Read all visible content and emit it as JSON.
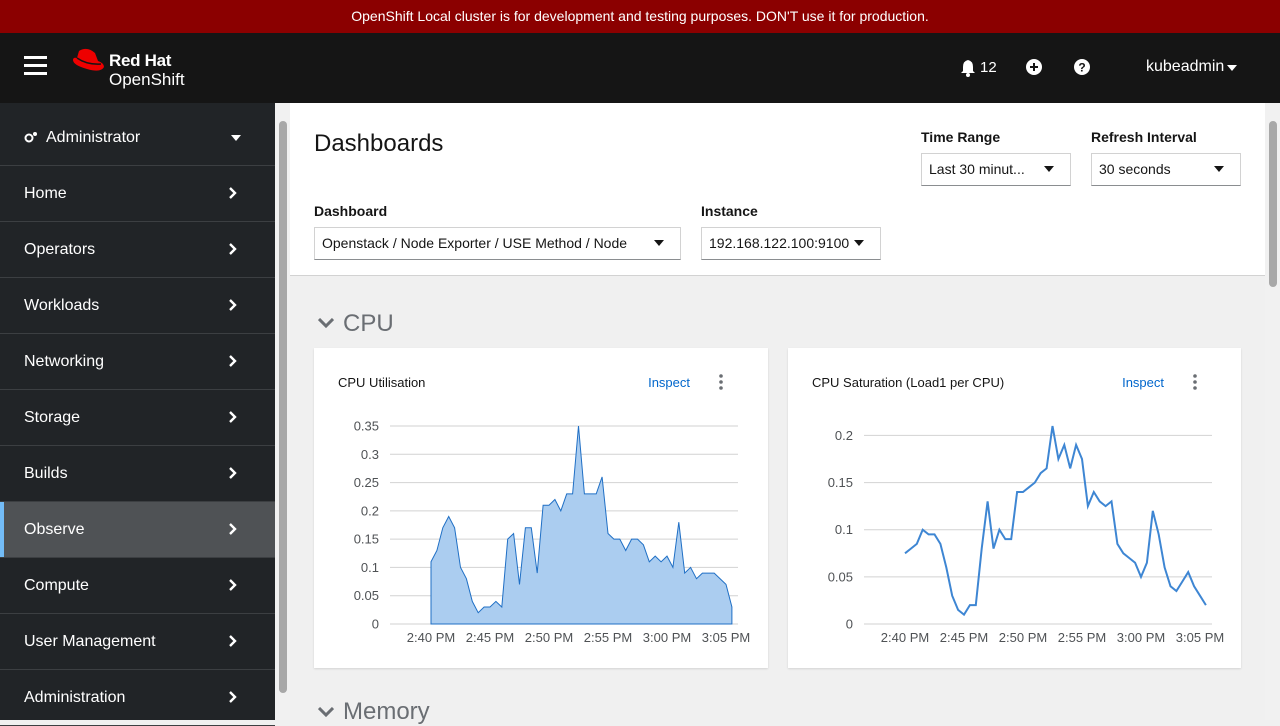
{
  "banner": "OpenShift Local cluster is for development and testing purposes. DON'T use it for production.",
  "header": {
    "brand_top": "Red Hat",
    "brand_bottom": "OpenShift",
    "notifications": 12,
    "user": "kubeadmin"
  },
  "nav": {
    "perspective": "Administrator",
    "items": [
      "Home",
      "Operators",
      "Workloads",
      "Networking",
      "Storage",
      "Builds",
      "Observe",
      "Compute",
      "User Management",
      "Administration"
    ],
    "active_item": 6
  },
  "page": {
    "title": "Dashboards",
    "time_range_label": "Time Range",
    "time_range": "Last 30 minut...",
    "refresh_label": "Refresh Interval",
    "refresh": "30 seconds",
    "dashboard_label": "Dashboard",
    "dashboard": "Openstack / Node Exporter / USE Method / Node",
    "instance_label": "Instance",
    "instance": "192.168.122.100:9100",
    "sections": [
      "CPU",
      "Memory"
    ]
  },
  "chart_data": [
    {
      "type": "area",
      "title": "CPU Utilisation",
      "action": "Inspect",
      "color": "#1f6fc5",
      "fill": "#abcdf0",
      "categories": [
        "2:40 PM",
        null,
        null,
        null,
        null,
        null,
        null,
        null,
        null,
        null,
        "2:45 PM",
        null,
        null,
        null,
        null,
        null,
        null,
        null,
        null,
        null,
        "2:50 PM",
        null,
        null,
        null,
        null,
        null,
        null,
        null,
        null,
        null,
        "2:55 PM",
        null,
        null,
        null,
        null,
        null,
        null,
        null,
        null,
        null,
        "3:00 PM",
        null,
        null,
        null,
        null,
        null,
        null,
        null,
        null,
        null,
        "3:05 PM",
        null
      ],
      "values": [
        0.11,
        0.13,
        0.17,
        0.19,
        0.17,
        0.1,
        0.08,
        0.04,
        0.02,
        0.03,
        0.03,
        0.04,
        0.03,
        0.15,
        0.16,
        0.07,
        0.17,
        0.17,
        0.09,
        0.21,
        0.21,
        0.22,
        0.2,
        0.23,
        0.23,
        0.35,
        0.23,
        0.23,
        0.23,
        0.26,
        0.16,
        0.15,
        0.15,
        0.13,
        0.15,
        0.15,
        0.14,
        0.11,
        0.12,
        0.11,
        0.12,
        0.1,
        0.18,
        0.09,
        0.1,
        0.08,
        0.09,
        0.09,
        0.09,
        0.08,
        0.07,
        0.03
      ],
      "ylim": [
        0,
        0.35
      ],
      "yticks": [
        0,
        0.05,
        0.1,
        0.15,
        0.2,
        0.25,
        0.3,
        0.35
      ],
      "grid": true
    },
    {
      "type": "line",
      "title": "CPU Saturation (Load1 per CPU)",
      "action": "Inspect",
      "color": "#3e86d3",
      "categories": [
        "2:40 PM",
        null,
        null,
        null,
        null,
        null,
        null,
        null,
        null,
        null,
        "2:45 PM",
        null,
        null,
        null,
        null,
        null,
        null,
        null,
        null,
        null,
        "2:50 PM",
        null,
        null,
        null,
        null,
        null,
        null,
        null,
        null,
        null,
        "2:55 PM",
        null,
        null,
        null,
        null,
        null,
        null,
        null,
        null,
        null,
        "3:00 PM",
        null,
        null,
        null,
        null,
        null,
        null,
        null,
        null,
        null,
        "3:05 PM",
        null
      ],
      "values": [
        0.075,
        0.08,
        0.085,
        0.1,
        0.095,
        0.095,
        0.085,
        0.06,
        0.03,
        0.015,
        0.01,
        0.02,
        0.02,
        0.08,
        0.13,
        0.08,
        0.1,
        0.09,
        0.09,
        0.14,
        0.14,
        0.145,
        0.15,
        0.16,
        0.165,
        0.21,
        0.175,
        0.19,
        0.165,
        0.19,
        0.175,
        0.125,
        0.14,
        0.13,
        0.125,
        0.13,
        0.085,
        0.075,
        0.07,
        0.065,
        0.05,
        0.065,
        0.12,
        0.095,
        0.06,
        0.04,
        0.035,
        0.045,
        0.055,
        0.04,
        0.03,
        0.02
      ],
      "ylim": [
        0,
        0.21
      ],
      "yticks": [
        0,
        0.05,
        0.1,
        0.15,
        0.2
      ],
      "grid": true
    }
  ]
}
